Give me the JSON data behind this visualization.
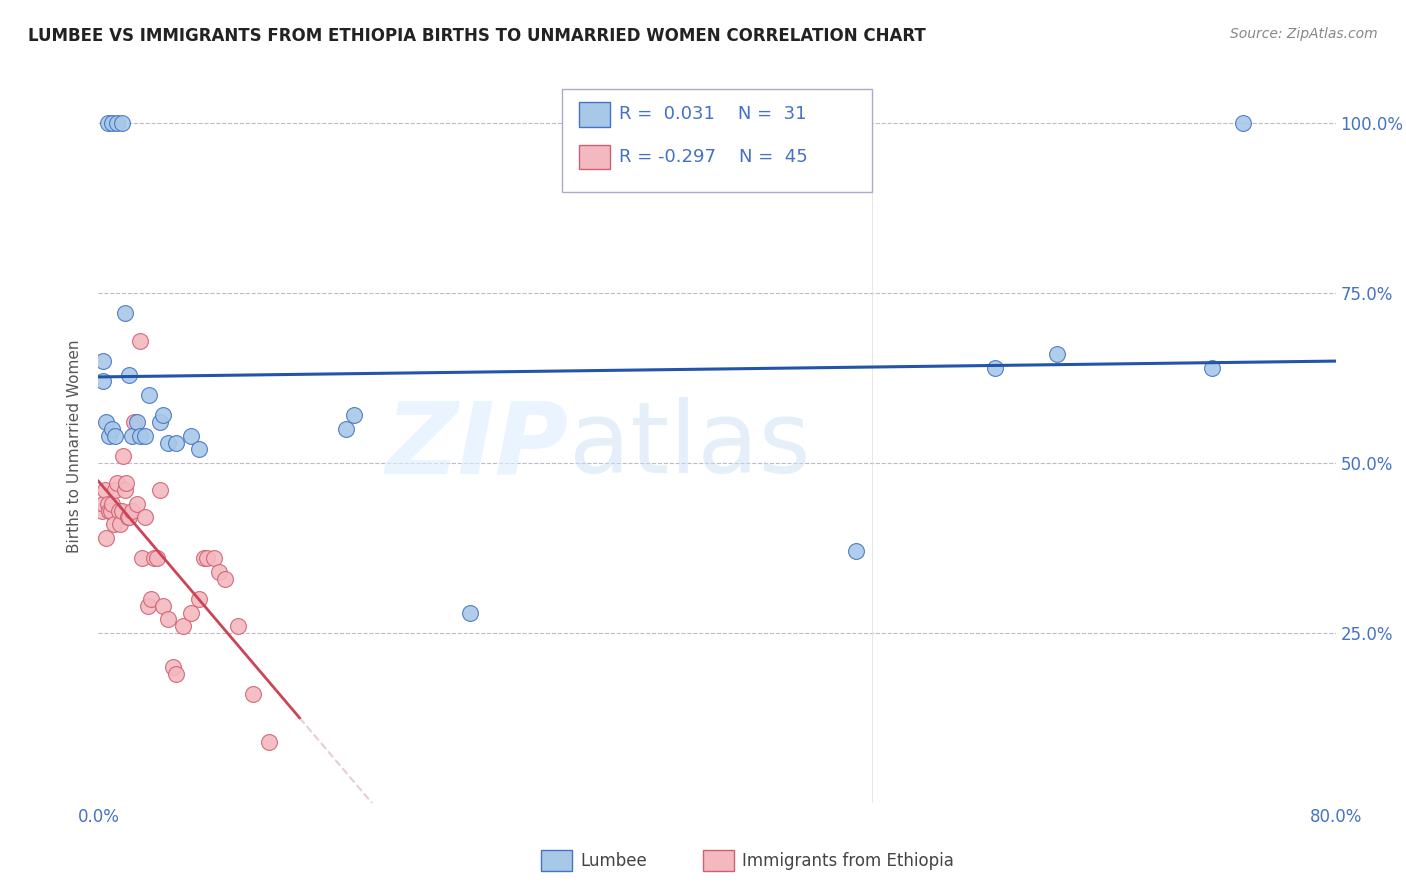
{
  "title": "LUMBEE VS IMMIGRANTS FROM ETHIOPIA BIRTHS TO UNMARRIED WOMEN CORRELATION CHART",
  "source": "Source: ZipAtlas.com",
  "ylabel": "Births to Unmarried Women",
  "ytick_labels": [
    "25.0%",
    "50.0%",
    "75.0%",
    "100.0%"
  ],
  "ytick_values": [
    0.25,
    0.5,
    0.75,
    1.0
  ],
  "xlim": [
    0.0,
    0.8
  ],
  "ylim": [
    0.0,
    1.05
  ],
  "legend_label1": "Lumbee",
  "legend_label2": "Immigrants from Ethiopia",
  "r1": "0.031",
  "n1": "31",
  "r2": "-0.297",
  "n2": "45",
  "lumbee_color": "#a8c8e8",
  "lumbee_edge_color": "#4472c4",
  "ethiopia_color": "#f4b8c0",
  "ethiopia_edge_color": "#d06070",
  "lumbee_line_color": "#2255aa",
  "ethiopia_line_color": "#cc4455",
  "lumbee_x": [
    0.003,
    0.006,
    0.009,
    0.012,
    0.015,
    0.017,
    0.02,
    0.022,
    0.025,
    0.027,
    0.03,
    0.033,
    0.04,
    0.042,
    0.045,
    0.05,
    0.06,
    0.065,
    0.16,
    0.165,
    0.24,
    0.49,
    0.58,
    0.62,
    0.72,
    0.003,
    0.005,
    0.007,
    0.009,
    0.011,
    0.74
  ],
  "lumbee_y": [
    0.62,
    1.0,
    1.0,
    1.0,
    1.0,
    0.72,
    0.63,
    0.54,
    0.56,
    0.54,
    0.54,
    0.6,
    0.56,
    0.57,
    0.53,
    0.53,
    0.54,
    0.52,
    0.55,
    0.57,
    0.28,
    0.37,
    0.64,
    0.66,
    0.64,
    0.65,
    0.56,
    0.54,
    0.55,
    0.54,
    1.0
  ],
  "ethiopia_x": [
    0.002,
    0.003,
    0.004,
    0.005,
    0.006,
    0.007,
    0.008,
    0.009,
    0.01,
    0.011,
    0.012,
    0.013,
    0.014,
    0.015,
    0.016,
    0.017,
    0.018,
    0.019,
    0.02,
    0.022,
    0.023,
    0.025,
    0.027,
    0.028,
    0.03,
    0.032,
    0.034,
    0.036,
    0.038,
    0.04,
    0.042,
    0.045,
    0.048,
    0.05,
    0.055,
    0.06,
    0.065,
    0.068,
    0.07,
    0.075,
    0.078,
    0.082,
    0.09,
    0.1,
    0.11
  ],
  "ethiopia_y": [
    0.43,
    0.44,
    0.46,
    0.39,
    0.44,
    0.43,
    0.43,
    0.44,
    0.41,
    0.46,
    0.47,
    0.43,
    0.41,
    0.43,
    0.51,
    0.46,
    0.47,
    0.42,
    0.42,
    0.43,
    0.56,
    0.44,
    0.68,
    0.36,
    0.42,
    0.29,
    0.3,
    0.36,
    0.36,
    0.46,
    0.29,
    0.27,
    0.2,
    0.19,
    0.26,
    0.28,
    0.3,
    0.36,
    0.36,
    0.36,
    0.34,
    0.33,
    0.26,
    0.16,
    0.09
  ]
}
